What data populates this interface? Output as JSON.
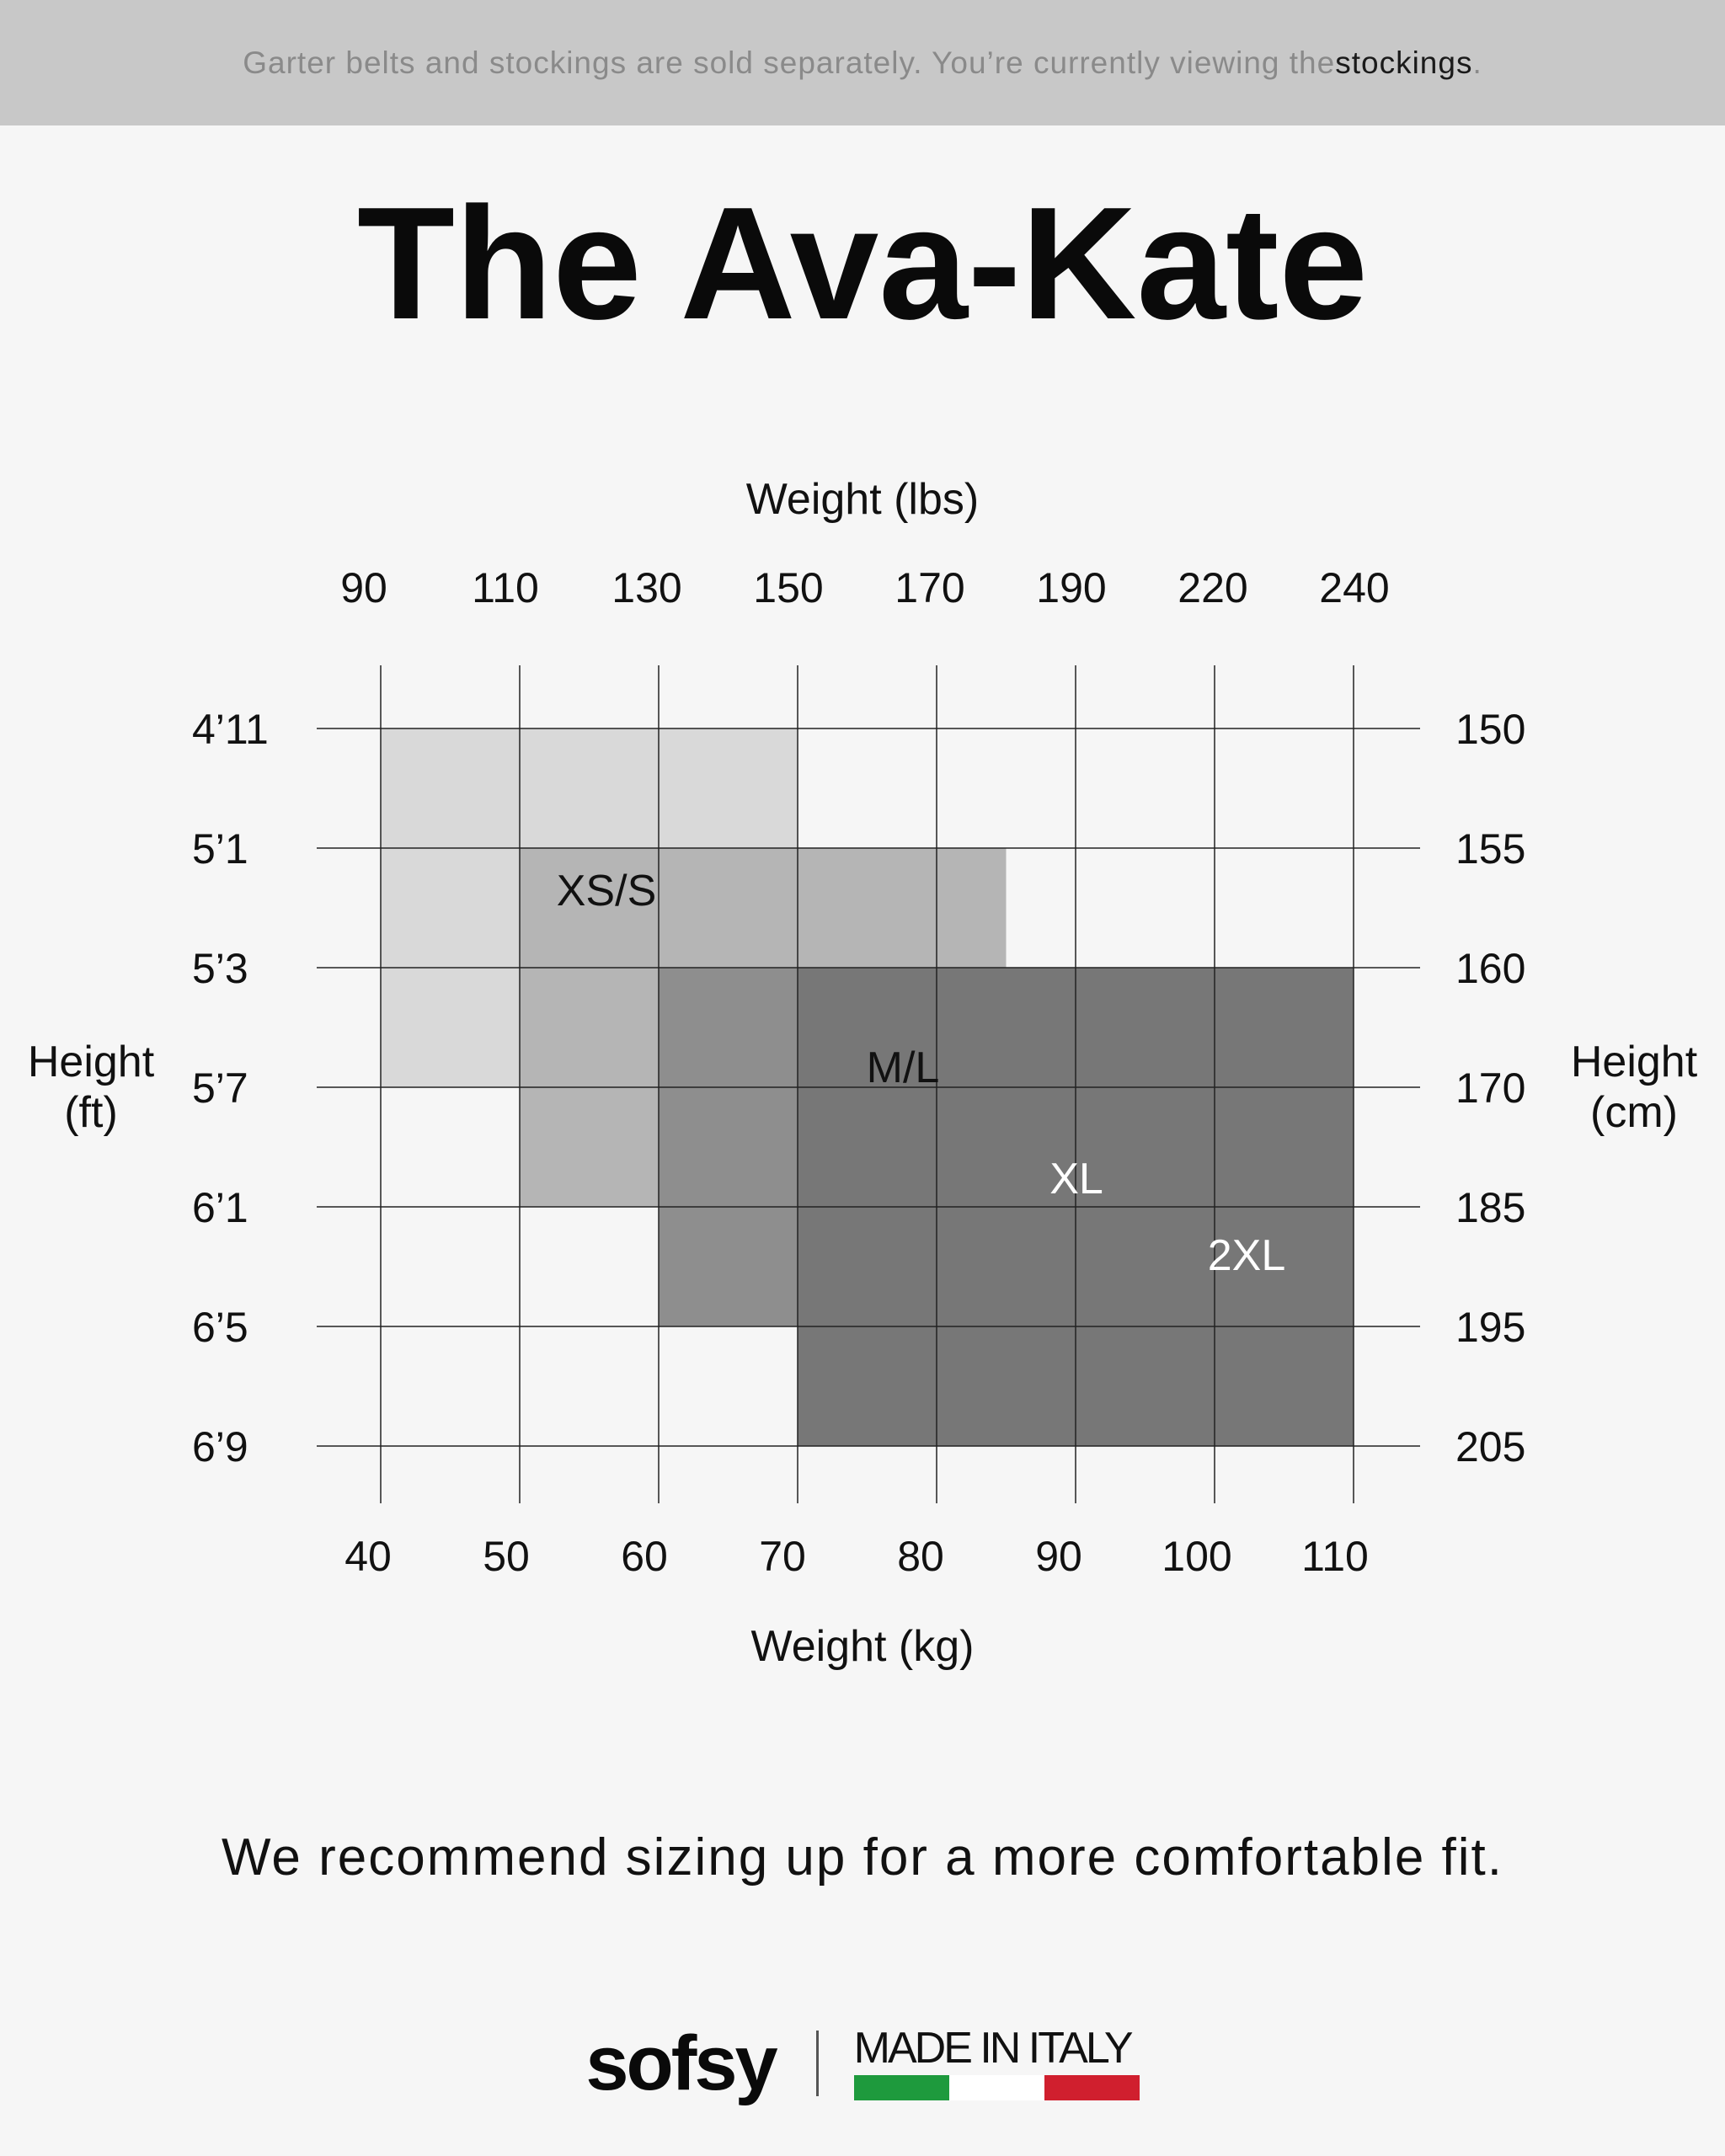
{
  "banner": {
    "text_before": "Garter belts and stockings are sold separately. You’re currently viewing the ",
    "highlight": "stockings",
    "text_after": "."
  },
  "title": "The Ava-Kate",
  "chart_data": {
    "type": "table",
    "subtype": "size-region-grid",
    "top_axis": {
      "title": "Weight (lbs)",
      "ticks": [
        "90",
        "110",
        "130",
        "150",
        "170",
        "190",
        "220",
        "240"
      ]
    },
    "bottom_axis": {
      "title": "Weight (kg)",
      "ticks": [
        "40",
        "50",
        "60",
        "70",
        "80",
        "90",
        "100",
        "110"
      ]
    },
    "left_axis": {
      "title": "Height (ft)",
      "title_lines": [
        "Height",
        "(ft)"
      ],
      "ticks": [
        "4’11",
        "5’1",
        "5’3",
        "5’7",
        "6’1",
        "6’5",
        "6’9"
      ]
    },
    "right_axis": {
      "title": "Height (cm)",
      "title_lines": [
        "Height",
        "(cm)"
      ],
      "ticks": [
        "150",
        "155",
        "160",
        "170",
        "185",
        "195",
        "205"
      ]
    },
    "grid": true,
    "sizes": [
      {
        "name": "XS/S",
        "weight_kg": [
          40,
          70
        ],
        "height_cm": [
          150,
          170
        ],
        "color": "#d9d9d9",
        "text_color": "#111111"
      },
      {
        "name": "M/L",
        "weight_kg": [
          50,
          85
        ],
        "height_cm": [
          155,
          185
        ],
        "color": "#b5b5b5",
        "text_color": "#111111"
      },
      {
        "name": "XL",
        "weight_kg": [
          60,
          95.5
        ],
        "height_cm": [
          160,
          195
        ],
        "color": "#8e8e8e",
        "text_color": "#ffffff"
      },
      {
        "name": "2XL",
        "weight_kg": [
          70,
          110
        ],
        "height_cm": [
          160,
          205
        ],
        "color": "#777777",
        "text_color": "#ffffff"
      }
    ]
  },
  "note": "We recommend sizing up for a more comfortable fit.",
  "footer": {
    "logo": "sofsy",
    "made_in": "MADE IN ITALY",
    "flag_colors": [
      "#1e9a3d",
      "#ffffff",
      "#d01f2e"
    ]
  }
}
